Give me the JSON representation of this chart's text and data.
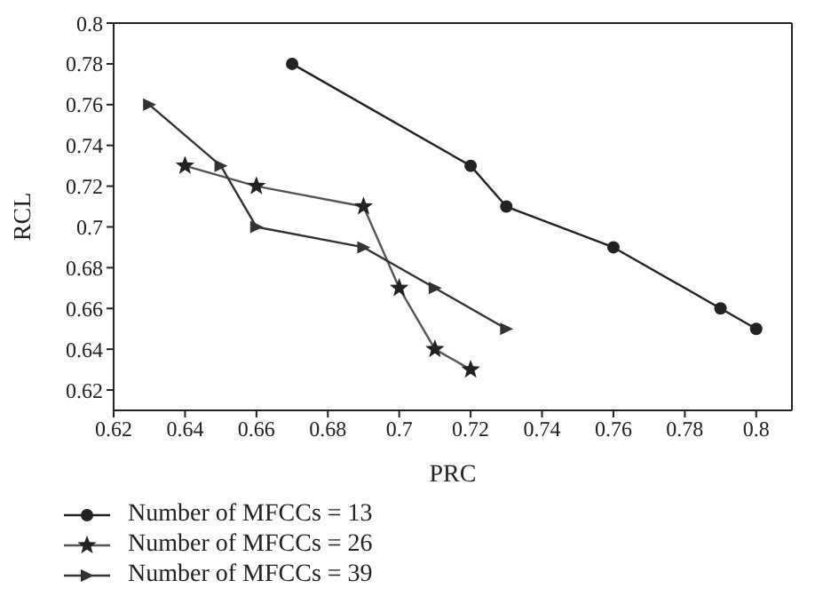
{
  "chart_data": {
    "type": "line",
    "xlabel": "PRC",
    "ylabel": "RCL",
    "xlim": [
      0.62,
      0.81
    ],
    "xticks": [
      0.62,
      0.64,
      0.66,
      0.68,
      0.7,
      0.72,
      0.74,
      0.76,
      0.78,
      0.8
    ],
    "ylim": [
      0.61,
      0.8
    ],
    "yticks": [
      0.62,
      0.64,
      0.66,
      0.68,
      0.7,
      0.72,
      0.74,
      0.76,
      0.78,
      0.8
    ],
    "grid": false,
    "legend": "bottom",
    "line_style": "solid",
    "series": [
      {
        "name": "Number of MFCCs = 13",
        "color": "#222222",
        "marker": "circle",
        "x": [
          0.67,
          0.72,
          0.73,
          0.76,
          0.79,
          0.8
        ],
        "values": [
          0.78,
          0.73,
          0.71,
          0.69,
          0.66,
          0.65
        ]
      },
      {
        "name": "Number of MFCCs = 26",
        "color": "#555555",
        "marker": "star",
        "x": [
          0.64,
          0.66,
          0.69,
          0.7,
          0.71,
          0.72
        ],
        "values": [
          0.73,
          0.72,
          0.71,
          0.67,
          0.64,
          0.63
        ]
      },
      {
        "name": "Number of MFCCs = 39",
        "color": "#333333",
        "marker": "triangle",
        "x": [
          0.63,
          0.65,
          0.66,
          0.69,
          0.71,
          0.73
        ],
        "values": [
          0.76,
          0.73,
          0.7,
          0.69,
          0.67,
          0.65
        ]
      }
    ]
  }
}
